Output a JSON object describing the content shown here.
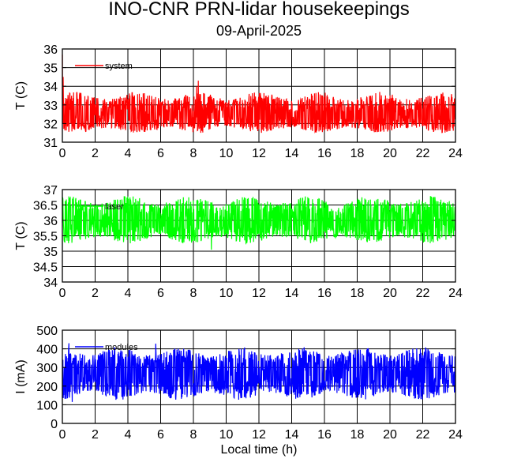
{
  "figure": {
    "title": "INO-CNR PRN-lidar housekeepings",
    "subtitle": "09-April-2025",
    "xlabel": "Local time (h)"
  },
  "chart_data": [
    {
      "type": "line",
      "ylabel": "T (C)",
      "xlim": [
        0,
        24
      ],
      "ylim": [
        31,
        36
      ],
      "x_ticks": [
        "0",
        "2",
        "4",
        "6",
        "8",
        "10",
        "12",
        "14",
        "16",
        "18",
        "20",
        "22",
        "24"
      ],
      "y_ticks": [
        "31",
        "32",
        "33",
        "34",
        "35",
        "36"
      ],
      "grid": true,
      "legend_position": "top-left",
      "series": [
        {
          "name": "system",
          "color": "#ff0000",
          "style": "dense-noise",
          "baseline": 32.4,
          "fluctuation_low": 31.5,
          "fluctuation_high": 33.7,
          "spikes": [
            {
              "x": 0.0,
              "y": 35.7
            },
            {
              "x": 0.05,
              "y": 34.5
            },
            {
              "x": 8.3,
              "y": 34.3
            },
            {
              "x": 8.2,
              "y": 34.0
            }
          ]
        }
      ]
    },
    {
      "type": "line",
      "ylabel": "T (C)",
      "xlim": [
        0,
        24
      ],
      "ylim": [
        34,
        37
      ],
      "x_ticks": [
        "0",
        "2",
        "4",
        "6",
        "8",
        "10",
        "12",
        "14",
        "16",
        "18",
        "20",
        "22",
        "24"
      ],
      "y_ticks": [
        "34",
        "34.5",
        "35",
        "35.5",
        "36",
        "36.5",
        "37"
      ],
      "grid": true,
      "legend_position": "top-left",
      "series": [
        {
          "name": "laser",
          "color": "#00ff00",
          "style": "dense-noise",
          "baseline": 35.95,
          "fluctuation_low": 35.25,
          "fluctuation_high": 36.8,
          "spikes": [
            {
              "x": 9.1,
              "y": 35.05
            }
          ]
        }
      ]
    },
    {
      "type": "line",
      "ylabel": "I (mA)",
      "xlim": [
        0,
        24
      ],
      "ylim": [
        0,
        500
      ],
      "x_ticks": [
        "0",
        "2",
        "4",
        "6",
        "8",
        "10",
        "12",
        "14",
        "16",
        "18",
        "20",
        "22",
        "24"
      ],
      "y_ticks": [
        "0",
        "100",
        "200",
        "300",
        "400",
        "500"
      ],
      "grid": true,
      "legend_position": "top-left",
      "series": [
        {
          "name": "modules",
          "color": "#0000ff",
          "style": "dense-noise",
          "baseline": 265,
          "fluctuation_low": 125,
          "fluctuation_high": 410,
          "spikes": [
            {
              "x": 0.4,
              "y": 430
            },
            {
              "x": 5.7,
              "y": 428
            },
            {
              "x": 0.6,
              "y": 115
            }
          ]
        }
      ]
    }
  ]
}
